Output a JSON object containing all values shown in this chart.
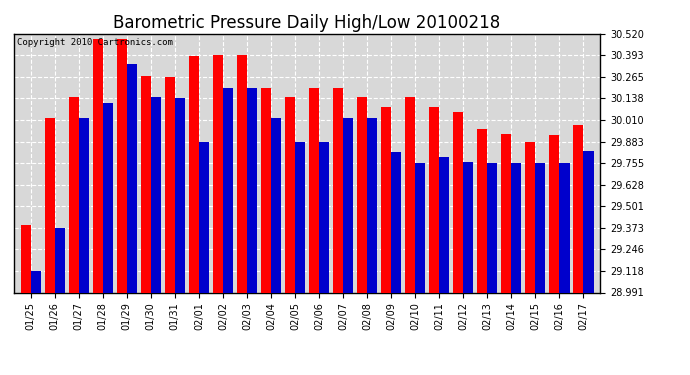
{
  "title": "Barometric Pressure Daily High/Low 20100218",
  "copyright_text": "Copyright 2010 Cartronics.com",
  "dates": [
    "01/25",
    "01/26",
    "01/27",
    "01/28",
    "01/29",
    "01/30",
    "01/31",
    "02/01",
    "02/02",
    "02/03",
    "02/04",
    "02/05",
    "02/06",
    "02/07",
    "02/08",
    "02/09",
    "02/10",
    "02/11",
    "02/12",
    "02/13",
    "02/14",
    "02/15",
    "02/16",
    "02/17"
  ],
  "highs": [
    29.39,
    30.02,
    30.148,
    30.49,
    30.49,
    30.27,
    30.265,
    30.39,
    30.393,
    30.393,
    30.2,
    30.148,
    30.2,
    30.2,
    30.148,
    30.09,
    30.148,
    30.09,
    30.06,
    29.96,
    29.925,
    29.883,
    29.92,
    29.98
  ],
  "lows": [
    29.118,
    29.373,
    30.02,
    30.11,
    30.34,
    30.148,
    30.138,
    29.883,
    30.2,
    30.2,
    30.02,
    29.883,
    29.883,
    30.02,
    30.02,
    29.82,
    29.755,
    29.79,
    29.76,
    29.755,
    29.755,
    29.755,
    29.755,
    29.825
  ],
  "high_color": "#ff0000",
  "low_color": "#0000cc",
  "bg_color": "#ffffff",
  "plot_bg_color": "#d8d8d8",
  "grid_color": "#ffffff",
  "y_min": 28.991,
  "y_max": 30.52,
  "y_ticks": [
    28.991,
    29.118,
    29.246,
    29.373,
    29.501,
    29.628,
    29.755,
    29.883,
    30.01,
    30.138,
    30.265,
    30.393,
    30.52
  ],
  "bar_width": 0.42,
  "title_fontsize": 12,
  "tick_fontsize": 7,
  "copyright_fontsize": 6.5
}
